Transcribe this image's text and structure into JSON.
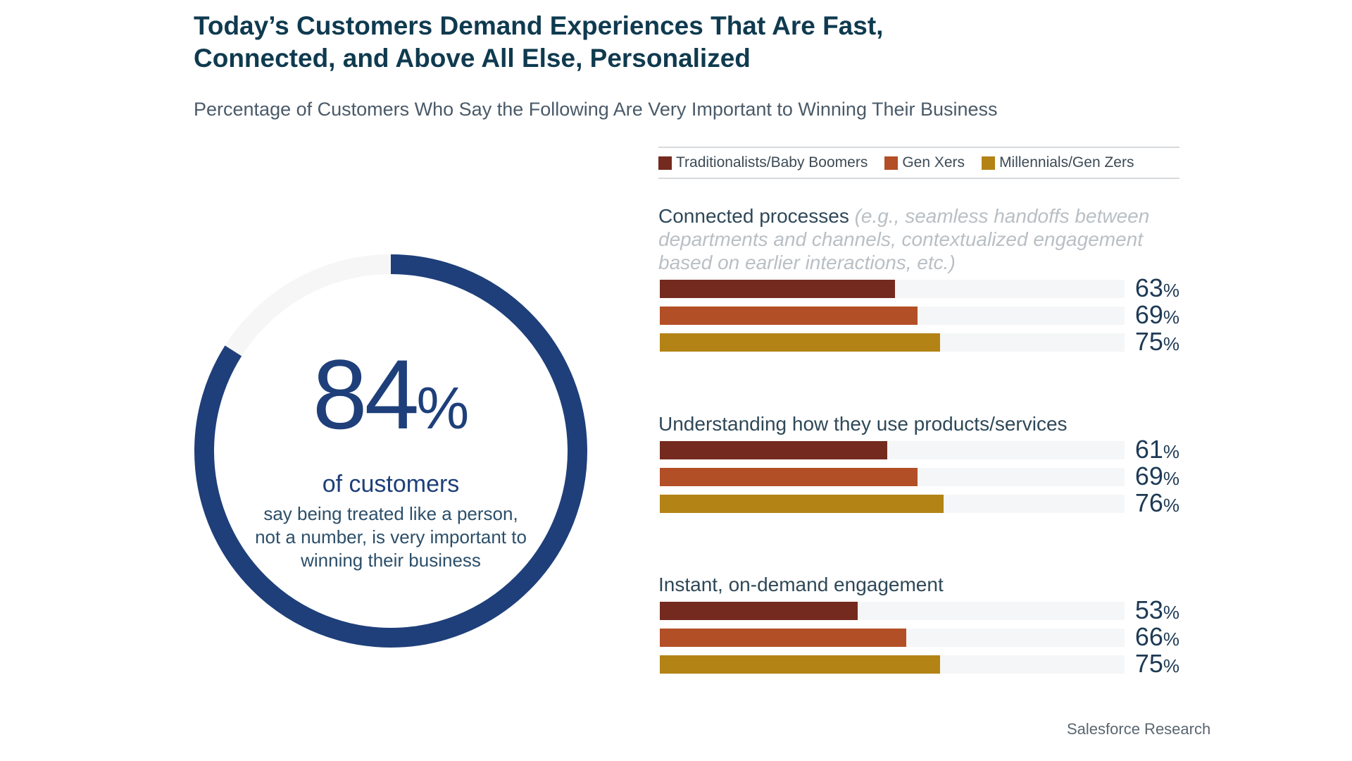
{
  "title_lines": [
    "Today’s Customers Demand Experiences That Are Fast,",
    "Connected, and Above All Else, Personalized"
  ],
  "subtitle": "Percentage of Customers Who Say the Following Are Very Important to Winning Their Business",
  "source": "Salesforce Research",
  "colors": {
    "navy": "#1e3f7a",
    "traditionalists": "#742a1f",
    "genx": "#b34f26",
    "millennials": "#b38315",
    "track": "#f5f6f7"
  },
  "highlight": {
    "value": "84",
    "unit": "%",
    "fraction": 0.84,
    "label": "of customers",
    "description": "say being treated like a person, not a number, is very important to winning their business"
  },
  "chart_data": {
    "type": "bar",
    "orientation": "horizontal",
    "xlim": [
      0,
      100
    ],
    "unit": "%",
    "legend": {
      "placement": "top",
      "entries": [
        "Traditionalists/Baby Boomers",
        "Gen Xers",
        "Millennials/Gen Zers"
      ]
    },
    "categories": [
      {
        "label": "Connected processes",
        "note": "(e.g., seamless handoffs between departments and channels, contextualized engagement based on earlier interactions, etc.)"
      },
      {
        "label": "Understanding how they use products/services",
        "note": ""
      },
      {
        "label": "Instant, on-demand engagement",
        "note": ""
      }
    ],
    "series": [
      {
        "name": "Traditionalists/Baby Boomers",
        "color": "#742a1f",
        "values": [
          63,
          61,
          53
        ]
      },
      {
        "name": "Gen Xers",
        "color": "#b34f26",
        "values": [
          69,
          69,
          66
        ]
      },
      {
        "name": "Millennials/Gen Zers",
        "color": "#b38315",
        "values": [
          75,
          76,
          75
        ]
      }
    ]
  }
}
